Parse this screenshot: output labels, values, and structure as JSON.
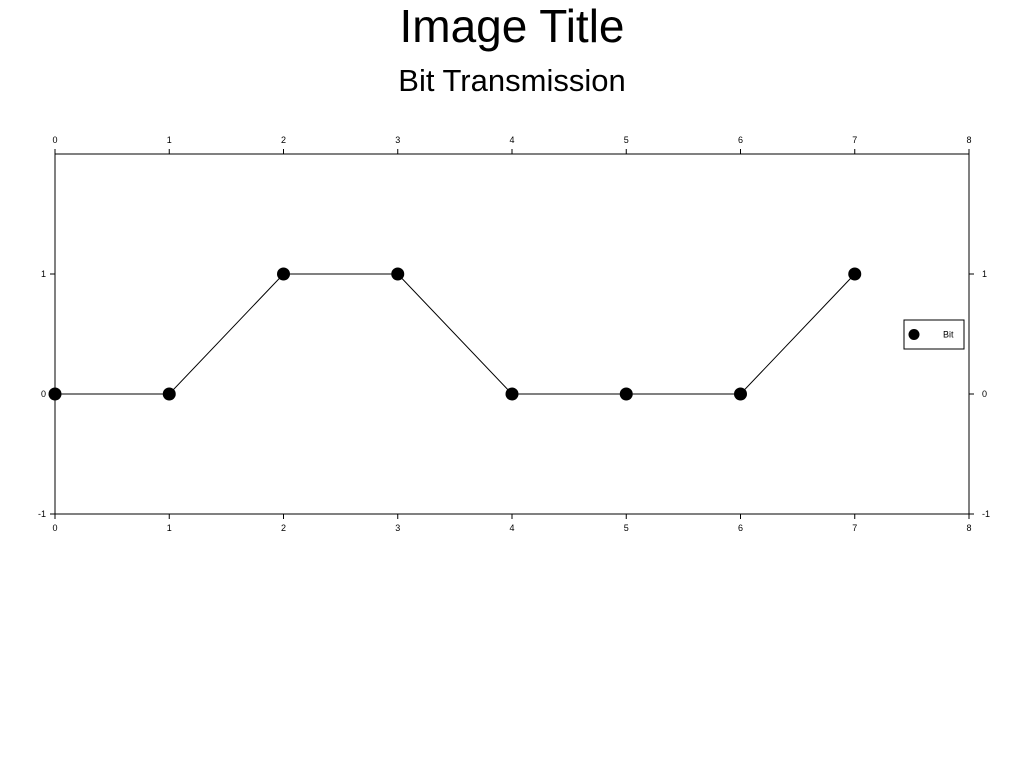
{
  "page": {
    "title": "Image Title",
    "subtitle": "Bit Transmission"
  },
  "chart_data": {
    "type": "line",
    "title": "Image Title",
    "subtitle": "Bit Transmission",
    "x": [
      0,
      1,
      2,
      3,
      4,
      5,
      6,
      7
    ],
    "series": [
      {
        "name": "Bit",
        "values": [
          0,
          0,
          1,
          1,
          0,
          0,
          0,
          1
        ],
        "color": "#000000",
        "marker": "filled-circle"
      }
    ],
    "xlim": [
      0,
      8
    ],
    "ylim": [
      -1,
      2
    ],
    "xticks": [
      "0",
      "1",
      "2",
      "3",
      "4",
      "5",
      "6",
      "7",
      "8"
    ],
    "yticks": [
      "-1",
      "0",
      "1"
    ],
    "ytick_values": [
      -1,
      0,
      1
    ],
    "mirror_axes": true,
    "grid": false,
    "legend_position": "right"
  }
}
